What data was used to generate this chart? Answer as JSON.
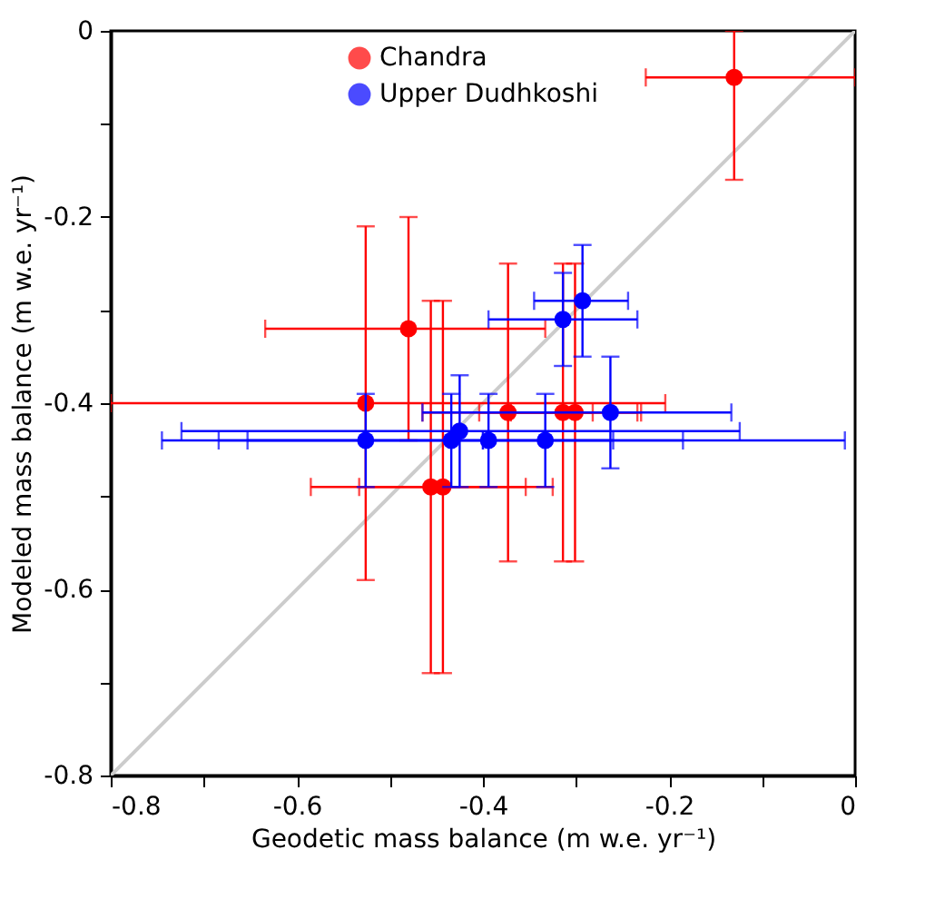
{
  "chart_data": {
    "type": "scatter",
    "xlabel": "Geodetic mass balance (m w.e. yr⁻¹)",
    "ylabel": "Modeled mass balance (m w.e. yr⁻¹)",
    "xlim": [
      -0.8,
      0
    ],
    "ylim": [
      -0.8,
      0
    ],
    "xticks": [
      -0.8,
      {
        "value": -0.7,
        "label": null
      },
      -0.6,
      {
        "value": -0.5,
        "label": null
      },
      -0.4,
      {
        "value": -0.3,
        "label": null
      },
      -0.2,
      {
        "value": -0.1,
        "label": null
      },
      0
    ],
    "yticks": [
      -0.8,
      {
        "value": -0.7,
        "label": null
      },
      -0.6,
      {
        "value": -0.5,
        "label": null
      },
      -0.4,
      {
        "value": -0.3,
        "label": null
      },
      -0.2,
      {
        "value": -0.1,
        "label": null
      },
      0
    ],
    "grid": false,
    "legend": "top",
    "marker": "circle",
    "series": [
      {
        "type": "line",
        "color": "#cccccc",
        "marker": "none",
        "line_style": "solid",
        "x": [
          -0.8,
          0
        ],
        "values": [
          -0.8,
          0
        ]
      },
      {
        "name": "Chandra",
        "color": "#ff0000",
        "x": [
          -0.13,
          -0.48,
          -0.526,
          -0.456,
          -0.443,
          -0.373,
          -0.314,
          -0.301
        ],
        "values": [
          -0.05,
          -0.32,
          -0.4,
          -0.49,
          -0.49,
          -0.41,
          -0.41,
          -0.41
        ],
        "xerrors": [
          [
            -0.225,
            0
          ],
          [
            -0.634,
            -0.333
          ],
          [
            -0.8,
            -0.204
          ],
          [
            -0.585,
            -0.325
          ],
          [
            -0.533,
            -0.354
          ],
          [
            -0.465,
            -0.282
          ],
          [
            -0.404,
            -0.234
          ],
          [
            -0.37,
            -0.23
          ]
        ],
        "errors": [
          [
            -0.16,
            0
          ],
          [
            -0.44,
            -0.2
          ],
          [
            -0.59,
            -0.21
          ],
          [
            -0.69,
            -0.29
          ],
          [
            -0.69,
            -0.29
          ],
          [
            -0.57,
            -0.25
          ],
          [
            -0.57,
            -0.25
          ],
          [
            -0.57,
            -0.25
          ]
        ]
      },
      {
        "name": "Upper Dudhkoshi",
        "color": "#0000ff",
        "x": [
          -0.526,
          -0.434,
          -0.425,
          -0.394,
          -0.333,
          -0.263,
          -0.314,
          -0.293
        ],
        "values": [
          -0.44,
          -0.44,
          -0.43,
          -0.44,
          -0.44,
          -0.41,
          -0.31,
          -0.29
        ],
        "xerrors": [
          [
            -0.653,
            -0.4
          ],
          [
            -0.684,
            -0.185
          ],
          [
            -0.724,
            -0.124
          ],
          [
            -0.745,
            -0.011
          ],
          [
            -0.4,
            -0.26
          ],
          [
            -0.465,
            -0.133
          ],
          [
            -0.394,
            -0.234
          ],
          [
            -0.345,
            -0.244
          ]
        ],
        "errors": [
          [
            -0.49,
            -0.39
          ],
          [
            -0.49,
            -0.39
          ],
          [
            -0.49,
            -0.37
          ],
          [
            -0.49,
            -0.39
          ],
          [
            -0.49,
            -0.39
          ],
          [
            -0.47,
            -0.35
          ],
          [
            -0.36,
            -0.26
          ],
          [
            -0.35,
            -0.23
          ]
        ]
      }
    ]
  }
}
